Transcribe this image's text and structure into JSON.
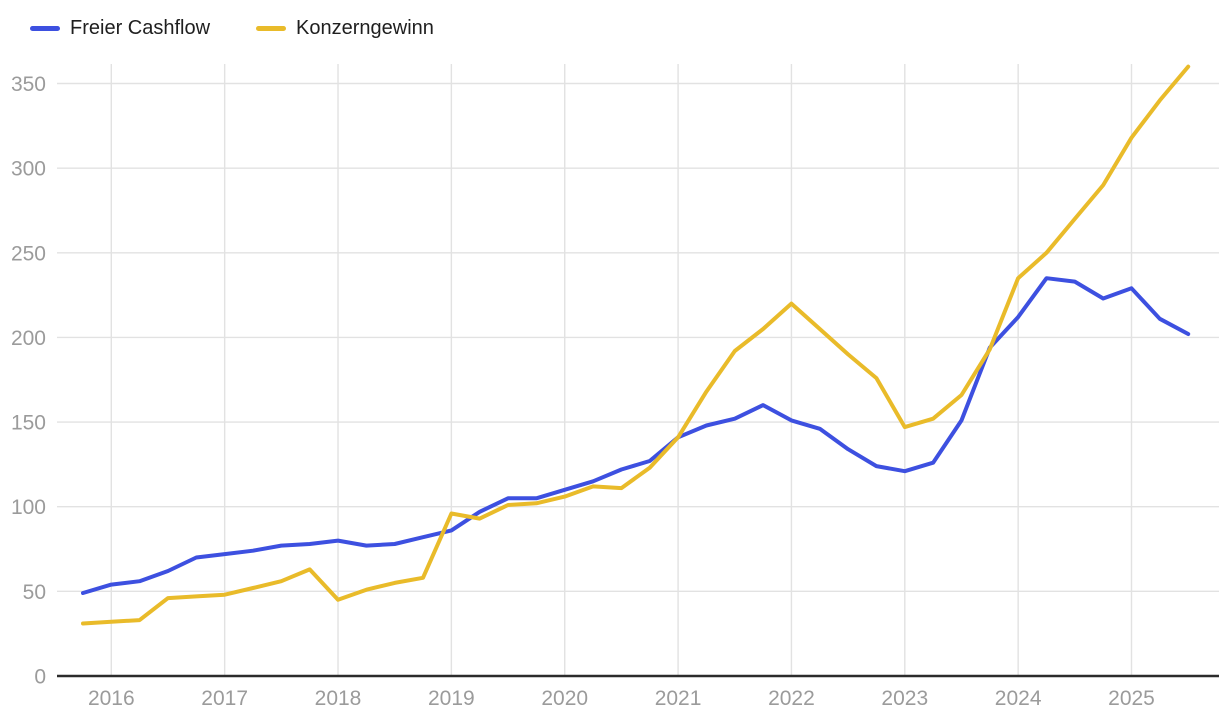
{
  "legend": {
    "position": "top-left",
    "items": [
      {
        "label": "Freier Cashflow",
        "color": "#3d50e0"
      },
      {
        "label": "Konzerngewinn",
        "color": "#e9bb2a"
      }
    ]
  },
  "chart_data": {
    "type": "line",
    "title": "",
    "xlabel": "",
    "ylabel": "",
    "x_start": "2015-Q4",
    "x_freq": "quarterly",
    "x_end": "2025-Q3",
    "x_tick_labels": [
      "2016",
      "2017",
      "2018",
      "2019",
      "2020",
      "2021",
      "2022",
      "2023",
      "2024",
      "2025"
    ],
    "points_per_tick_interval": 4,
    "first_tick_point_index": 1,
    "y_ticks": [
      0,
      50,
      100,
      150,
      200,
      250,
      300,
      350
    ],
    "ylim": [
      0,
      360
    ],
    "grid": true,
    "legend_position": "top-left",
    "series": [
      {
        "name": "Freier Cashflow",
        "color": "#3d50e0",
        "values": [
          49,
          54,
          56,
          62,
          70,
          72,
          74,
          77,
          78,
          80,
          77,
          78,
          82,
          86,
          97,
          105,
          105,
          110,
          115,
          122,
          127,
          141,
          148,
          152,
          160,
          151,
          146,
          134,
          124,
          121,
          126,
          151,
          194,
          212,
          235,
          233,
          223,
          229,
          211,
          202
        ]
      },
      {
        "name": "Konzerngewinn",
        "color": "#e9bb2a",
        "values": [
          31,
          32,
          33,
          46,
          47,
          48,
          52,
          56,
          63,
          45,
          51,
          55,
          58,
          96,
          93,
          101,
          102,
          106,
          112,
          111,
          123,
          141,
          168,
          192,
          205,
          220,
          205,
          190,
          176,
          147,
          152,
          166,
          193,
          235,
          250,
          270,
          290,
          318,
          340,
          360
        ]
      }
    ]
  },
  "colors": {
    "background": "#ffffff",
    "grid_line": "#e2e2e2",
    "axis_line": "#2b2b2b",
    "tick_text": "#9b9b9b",
    "legend_text": "#1f1f1f"
  }
}
